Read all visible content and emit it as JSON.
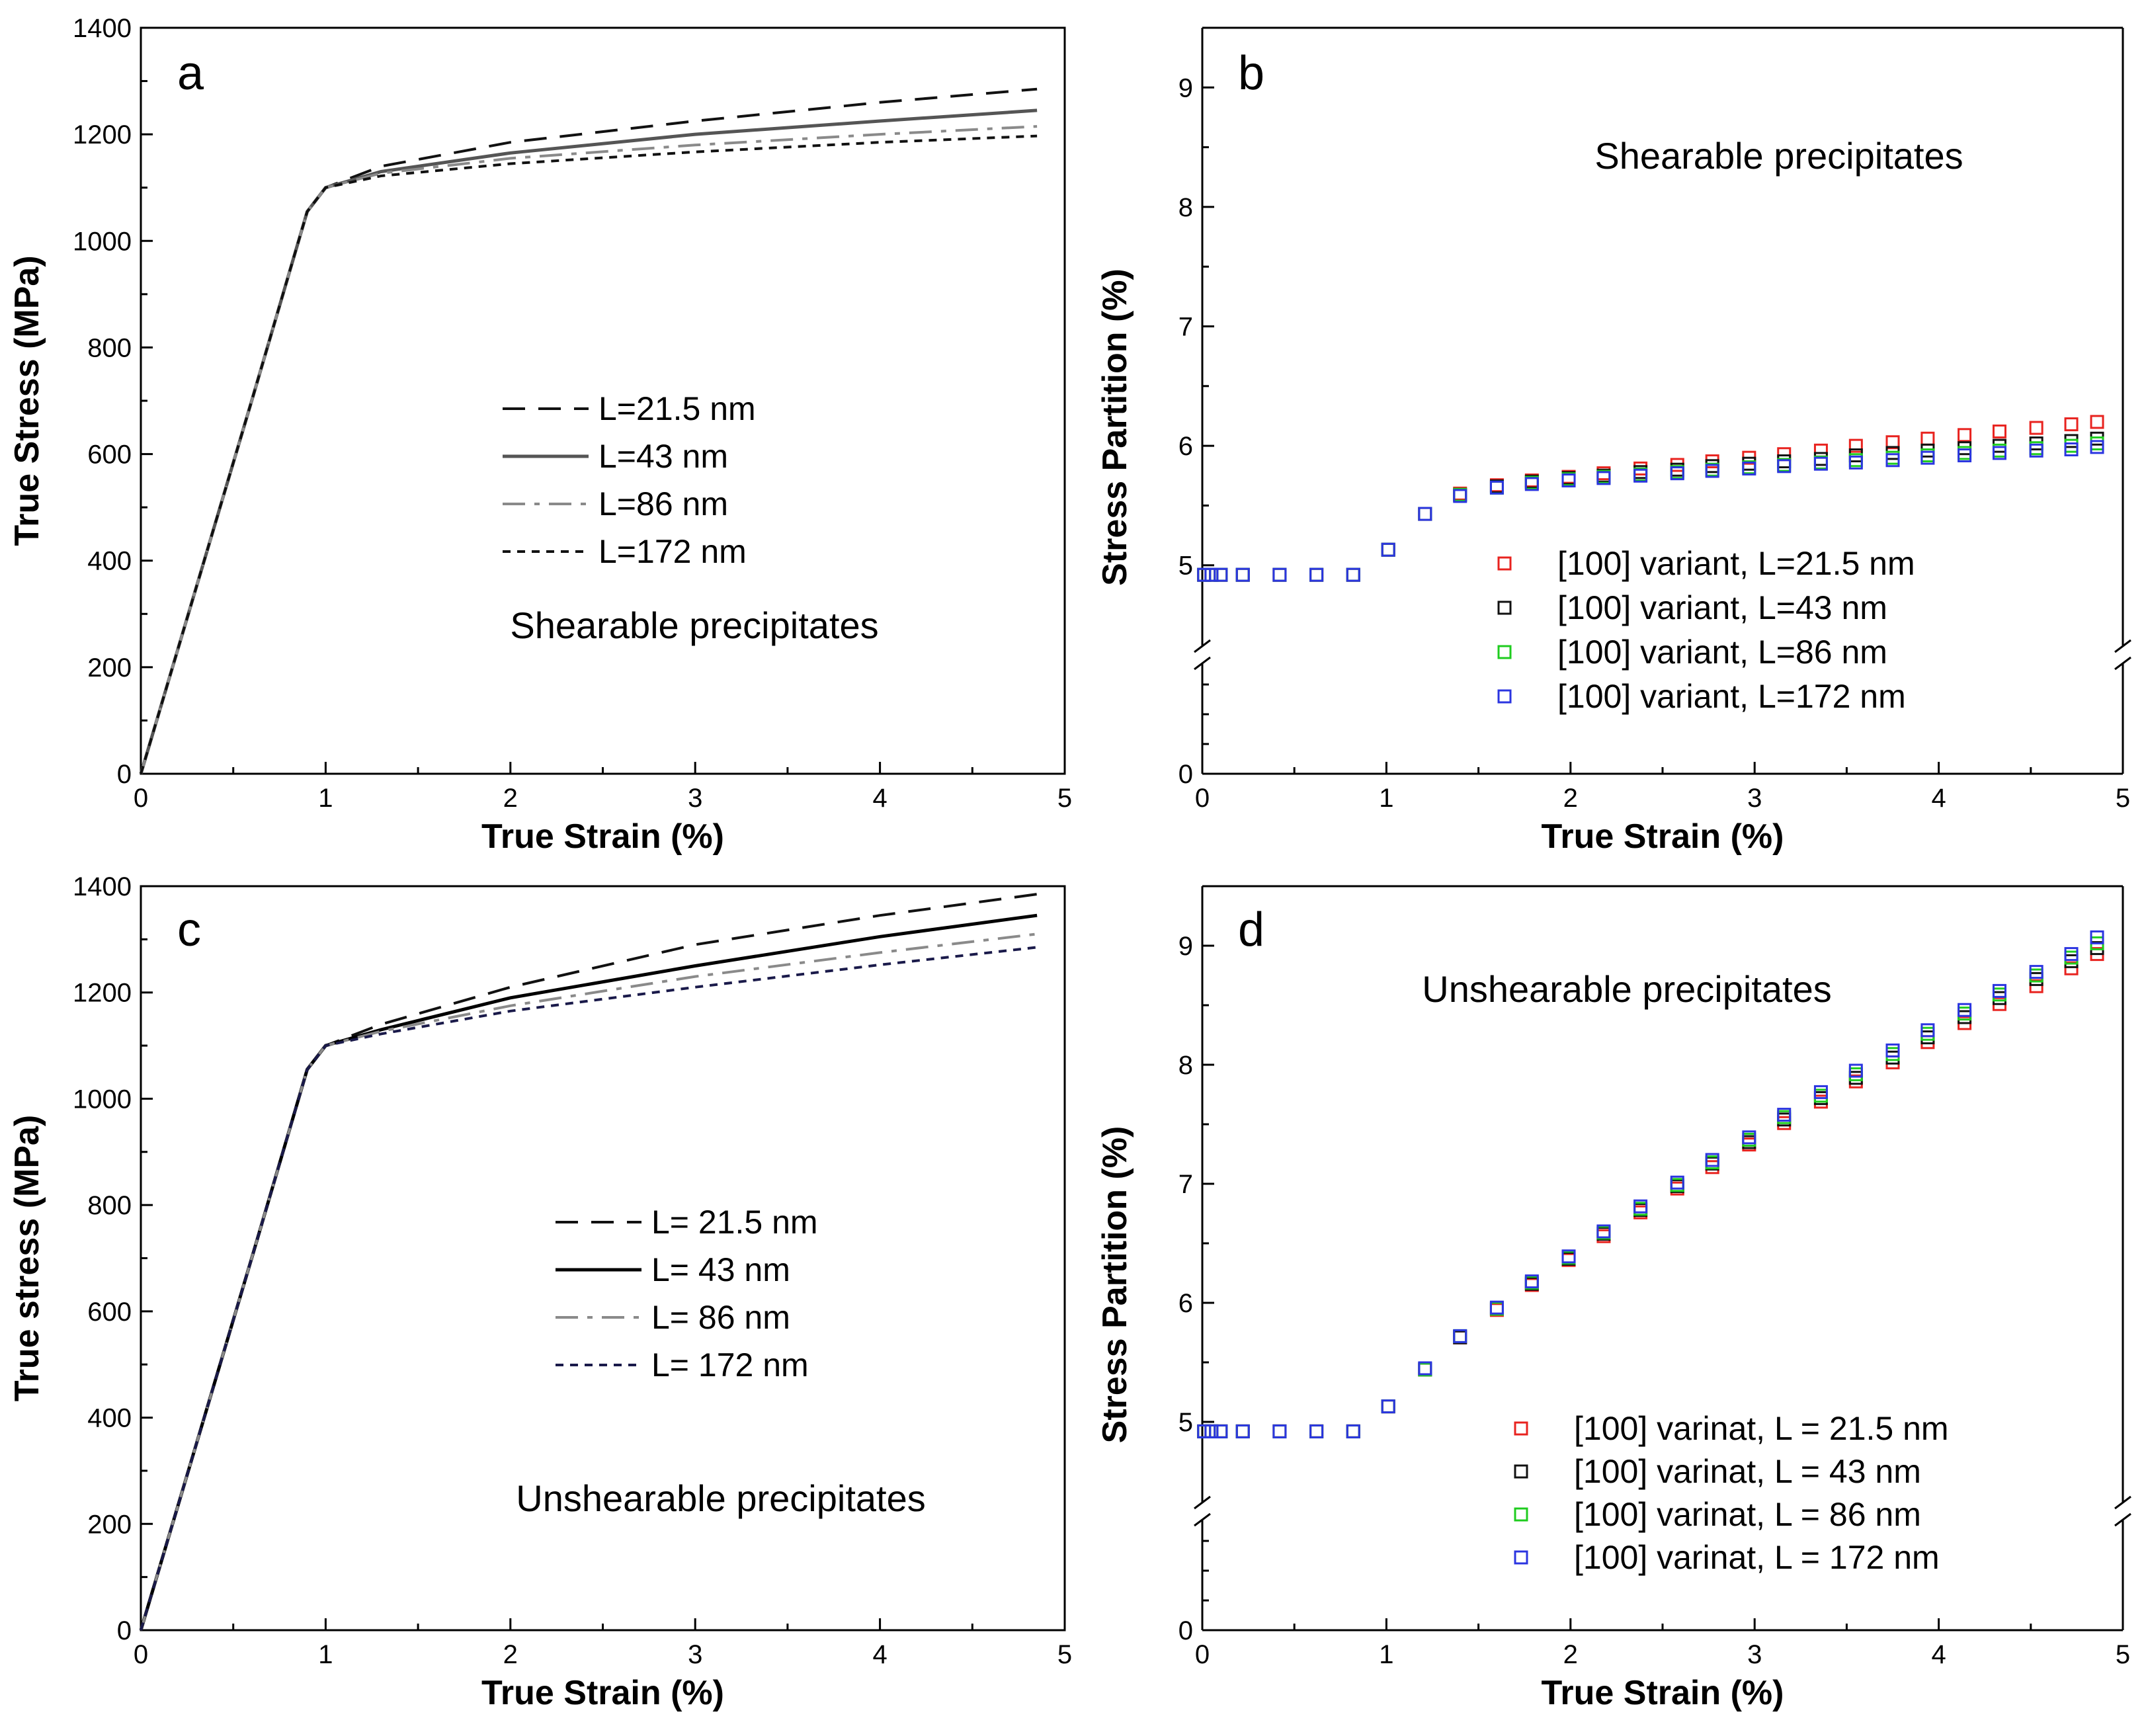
{
  "chart_data": [
    {
      "type": "line",
      "panel": "a",
      "xlabel": "True Strain (%)",
      "ylabel": "True Stress (MPa)",
      "xlim": [
        0,
        5
      ],
      "ylim": [
        0,
        1400
      ],
      "xticks": [
        "0",
        "1",
        "2",
        "3",
        "4",
        "5"
      ],
      "yticks": [
        "0",
        "200",
        "400",
        "600",
        "800",
        "1000",
        "1200",
        "1400"
      ],
      "annotation": "Shearable precipitates",
      "legend_position": "center",
      "series": [
        {
          "name": "L=21.5 nm",
          "style": "dashed",
          "color": "#111111",
          "x": [
            0,
            0.3,
            0.6,
            0.9,
            1.0,
            1.3,
            2.0,
            3.0,
            4.0,
            4.85
          ],
          "y": [
            0,
            350,
            700,
            1055,
            1100,
            1140,
            1185,
            1225,
            1260,
            1285
          ]
        },
        {
          "name": "L=43 nm",
          "style": "solid",
          "color": "#555555",
          "x": [
            0,
            0.3,
            0.6,
            0.9,
            1.0,
            1.3,
            2.0,
            3.0,
            4.0,
            4.85
          ],
          "y": [
            0,
            350,
            700,
            1055,
            1100,
            1130,
            1165,
            1200,
            1225,
            1245
          ]
        },
        {
          "name": "L=86 nm",
          "style": "dashdot",
          "color": "#8a8a8a",
          "x": [
            0,
            0.3,
            0.6,
            0.9,
            1.0,
            1.3,
            2.0,
            3.0,
            4.0,
            4.85
          ],
          "y": [
            0,
            350,
            700,
            1055,
            1100,
            1127,
            1155,
            1180,
            1200,
            1215
          ]
        },
        {
          "name": "L=172 nm",
          "style": "dotted",
          "color": "#111111",
          "x": [
            0,
            0.3,
            0.6,
            0.9,
            1.0,
            1.3,
            2.0,
            3.0,
            4.0,
            4.85
          ],
          "y": [
            0,
            350,
            700,
            1055,
            1100,
            1122,
            1145,
            1167,
            1185,
            1197
          ]
        }
      ]
    },
    {
      "type": "scatter",
      "panel": "b",
      "xlabel": "True Strain (%)",
      "ylabel": "Stress Partition (%)",
      "xlim": [
        0,
        5
      ],
      "ylim": [
        0,
        9.5
      ],
      "axis_break": {
        "below": 4.5,
        "upper_range": [
          4.5,
          9.5
        ]
      },
      "xticks": [
        "0",
        "1",
        "2",
        "3",
        "4",
        "5"
      ],
      "yticks": [
        "0",
        "5",
        "6",
        "7",
        "8",
        "9"
      ],
      "annotation": "Shearable precipitates",
      "legend_position": "lower-right",
      "x": [
        0.01,
        0.05,
        0.1,
        0.22,
        0.42,
        0.62,
        0.82,
        1.01,
        1.21,
        1.4,
        1.6,
        1.79,
        1.99,
        2.18,
        2.38,
        2.58,
        2.77,
        2.97,
        3.16,
        3.36,
        3.55,
        3.75,
        3.94,
        4.14,
        4.33,
        4.53,
        4.72,
        4.86
      ],
      "series": [
        {
          "name": "[100] variant, L=21.5 nm",
          "color": "#e8231f",
          "values": [
            4.92,
            4.92,
            4.92,
            4.92,
            4.92,
            4.92,
            4.92,
            5.13,
            5.43,
            5.6,
            5.67,
            5.71,
            5.74,
            5.77,
            5.81,
            5.84,
            5.87,
            5.9,
            5.93,
            5.96,
            6.0,
            6.03,
            6.06,
            6.09,
            6.12,
            6.15,
            6.18,
            6.2
          ]
        },
        {
          "name": "[100] variant, L=43 nm",
          "color": "#111111",
          "values": [
            4.92,
            4.92,
            4.92,
            4.92,
            4.92,
            4.92,
            4.92,
            5.13,
            5.43,
            5.59,
            5.66,
            5.7,
            5.73,
            5.75,
            5.78,
            5.8,
            5.83,
            5.85,
            5.87,
            5.89,
            5.92,
            5.94,
            5.96,
            5.98,
            6.0,
            6.02,
            6.04,
            6.06
          ]
        },
        {
          "name": "[100] variant, L=86 nm",
          "color": "#1fcc1f",
          "values": [
            4.92,
            4.92,
            4.92,
            4.92,
            4.92,
            4.92,
            4.92,
            5.13,
            5.43,
            5.59,
            5.65,
            5.69,
            5.72,
            5.74,
            5.76,
            5.78,
            5.8,
            5.82,
            5.84,
            5.86,
            5.88,
            5.9,
            5.92,
            5.94,
            5.96,
            5.98,
            6.0,
            6.02
          ]
        },
        {
          "name": "[100] variant, L=172 nm",
          "color": "#2b35e0",
          "values": [
            4.92,
            4.92,
            4.92,
            4.92,
            4.92,
            4.92,
            4.92,
            5.13,
            5.43,
            5.58,
            5.65,
            5.68,
            5.71,
            5.73,
            5.75,
            5.77,
            5.79,
            5.81,
            5.83,
            5.85,
            5.86,
            5.88,
            5.9,
            5.92,
            5.94,
            5.96,
            5.97,
            5.99
          ]
        }
      ]
    },
    {
      "type": "line",
      "panel": "c",
      "xlabel": "True Strain (%)",
      "ylabel": "True stress (MPa)",
      "xlim": [
        0,
        5
      ],
      "ylim": [
        0,
        1400
      ],
      "xticks": [
        "0",
        "1",
        "2",
        "3",
        "4",
        "5"
      ],
      "yticks": [
        "0",
        "200",
        "400",
        "600",
        "800",
        "1000",
        "1200",
        "1400"
      ],
      "annotation": "Unshearable precipitates",
      "legend_position": "center",
      "series": [
        {
          "name": "L= 21.5 nm",
          "style": "dashed",
          "color": "#111111",
          "x": [
            0,
            0.3,
            0.6,
            0.9,
            1.0,
            1.3,
            2.0,
            3.0,
            4.0,
            4.85
          ],
          "y": [
            0,
            350,
            700,
            1055,
            1100,
            1140,
            1210,
            1290,
            1345,
            1385
          ]
        },
        {
          "name": "L= 43 nm",
          "style": "solid",
          "color": "#000000",
          "x": [
            0,
            0.3,
            0.6,
            0.9,
            1.0,
            1.3,
            2.0,
            3.0,
            4.0,
            4.85
          ],
          "y": [
            0,
            350,
            700,
            1055,
            1100,
            1130,
            1190,
            1250,
            1305,
            1345
          ]
        },
        {
          "name": "L= 86 nm",
          "style": "dashdot",
          "color": "#8a8a8a",
          "x": [
            0,
            0.3,
            0.6,
            0.9,
            1.0,
            1.3,
            2.0,
            3.0,
            4.0,
            4.85
          ],
          "y": [
            0,
            350,
            700,
            1055,
            1100,
            1127,
            1175,
            1230,
            1275,
            1310
          ]
        },
        {
          "name": "L= 172 nm",
          "style": "dotted",
          "color": "#1a1a4a",
          "x": [
            0,
            0.3,
            0.6,
            0.9,
            1.0,
            1.3,
            2.0,
            3.0,
            4.0,
            4.85
          ],
          "y": [
            0,
            350,
            700,
            1055,
            1100,
            1122,
            1165,
            1210,
            1252,
            1285
          ]
        }
      ]
    },
    {
      "type": "scatter",
      "panel": "d",
      "xlabel": "True Strain (%)",
      "ylabel": "Stress Partition (%)",
      "xlim": [
        0,
        5
      ],
      "ylim": [
        0,
        9.5
      ],
      "axis_break": {
        "below": 4.5,
        "upper_range": [
          4.5,
          9.5
        ]
      },
      "xticks": [
        "0",
        "1",
        "2",
        "3",
        "4",
        "5"
      ],
      "yticks": [
        "0",
        "5",
        "6",
        "7",
        "8",
        "9"
      ],
      "annotation": "Unshearable precipitates",
      "legend_position": "lower-right",
      "x": [
        0.01,
        0.05,
        0.1,
        0.22,
        0.42,
        0.62,
        0.82,
        1.01,
        1.21,
        1.4,
        1.6,
        1.79,
        1.99,
        2.18,
        2.38,
        2.58,
        2.77,
        2.97,
        3.16,
        3.36,
        3.55,
        3.75,
        3.94,
        4.14,
        4.33,
        4.53,
        4.72,
        4.86
      ],
      "series": [
        {
          "name": "[100] varinat, L = 21.5 nm",
          "color": "#e8231f",
          "values": [
            4.92,
            4.92,
            4.92,
            4.92,
            4.92,
            4.92,
            4.92,
            5.13,
            5.44,
            5.71,
            5.94,
            6.15,
            6.36,
            6.56,
            6.76,
            6.96,
            7.14,
            7.33,
            7.51,
            7.69,
            7.86,
            8.02,
            8.19,
            8.35,
            8.51,
            8.66,
            8.81,
            8.93
          ]
        },
        {
          "name": "[100] varinat, L = 43 nm",
          "color": "#111111",
          "values": [
            4.92,
            4.92,
            4.92,
            4.92,
            4.92,
            4.92,
            4.92,
            5.13,
            5.44,
            5.71,
            5.95,
            6.16,
            6.37,
            6.58,
            6.78,
            6.98,
            7.17,
            7.35,
            7.54,
            7.72,
            7.89,
            8.06,
            8.23,
            8.4,
            8.56,
            8.72,
            8.87,
            8.98
          ]
        },
        {
          "name": "[100] varinat, L = 86 nm",
          "color": "#1fcc1f",
          "values": [
            4.92,
            4.92,
            4.92,
            4.92,
            4.92,
            4.92,
            4.92,
            5.13,
            5.44,
            5.72,
            5.95,
            6.17,
            6.38,
            6.59,
            6.79,
            6.99,
            7.18,
            7.37,
            7.56,
            7.74,
            7.92,
            8.09,
            8.26,
            8.43,
            8.59,
            8.75,
            8.9,
            9.02
          ]
        },
        {
          "name": "[100] varinat, L = 172 nm",
          "color": "#2b35e0",
          "values": [
            4.92,
            4.92,
            4.92,
            4.92,
            4.92,
            4.92,
            4.92,
            5.13,
            5.45,
            5.72,
            5.96,
            6.18,
            6.39,
            6.6,
            6.81,
            7.01,
            7.2,
            7.39,
            7.58,
            7.77,
            7.95,
            8.12,
            8.29,
            8.46,
            8.62,
            8.78,
            8.93,
            9.07
          ]
        }
      ]
    }
  ]
}
